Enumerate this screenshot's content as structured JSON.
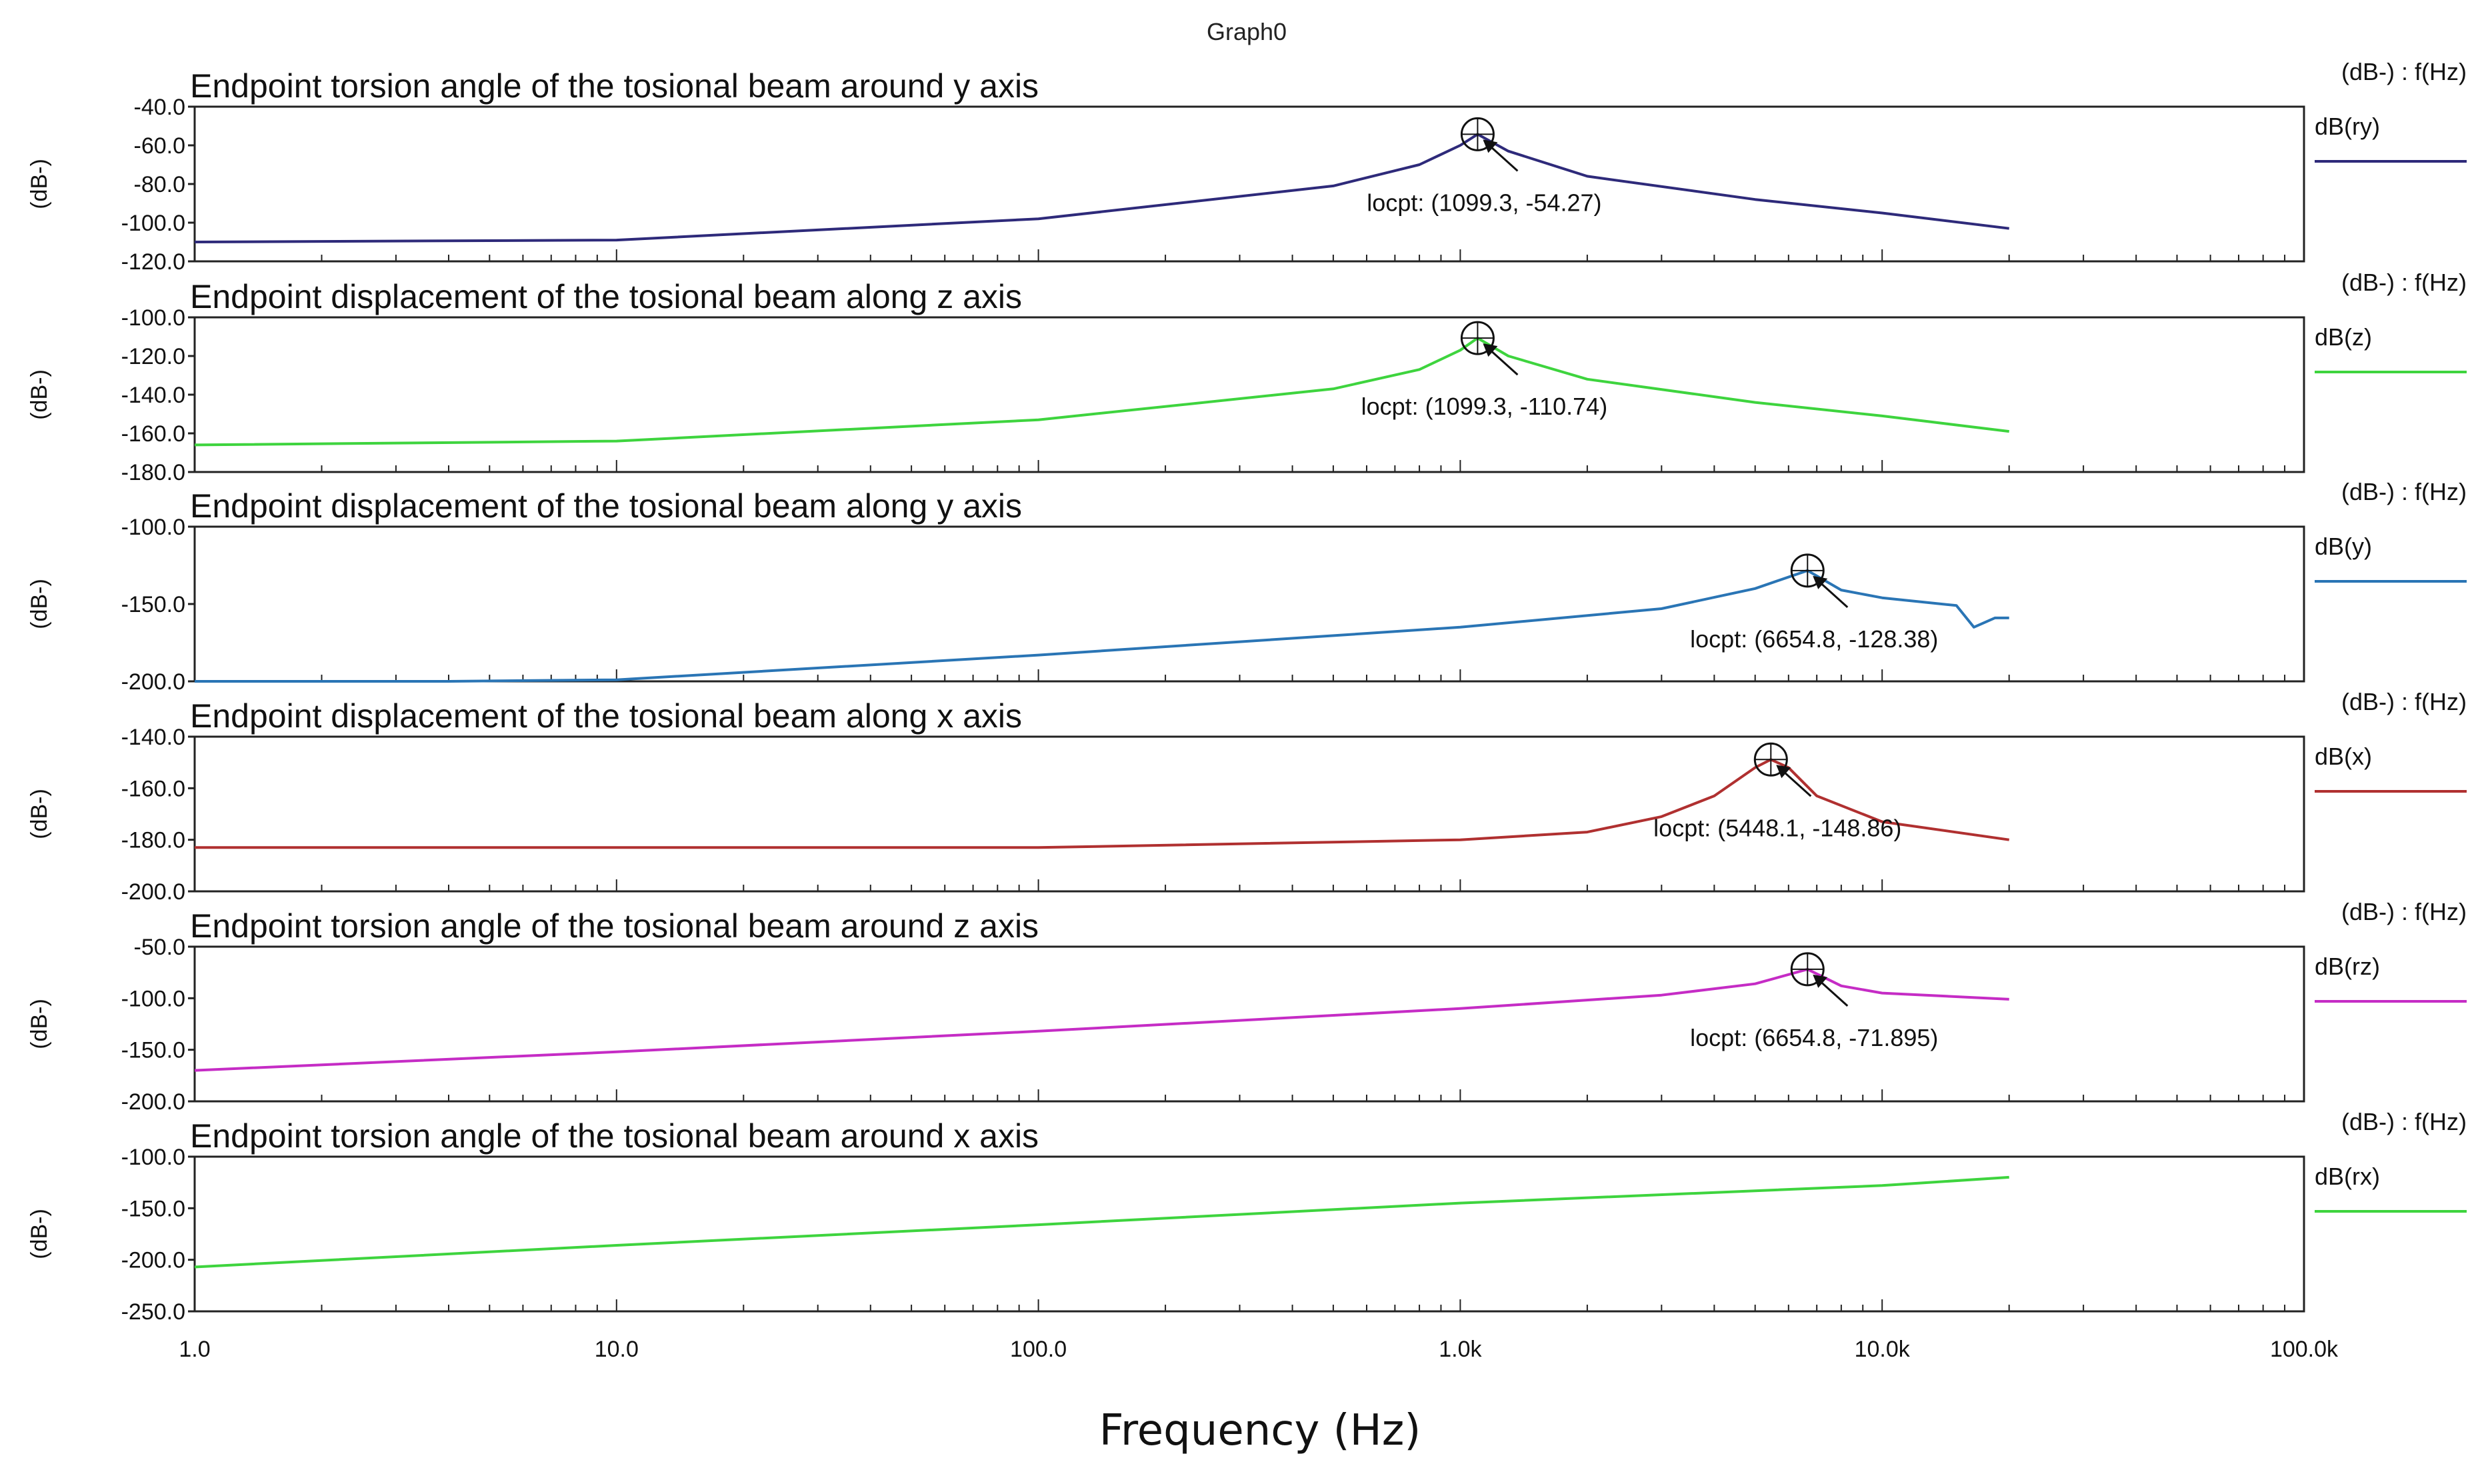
{
  "graph_name": "Graph0",
  "chart_data": {
    "type": "line",
    "xscale": "log",
    "xlim": [
      1,
      100000
    ],
    "xlabel": "Frequency (Hz)",
    "xticks": [
      {
        "value": 1,
        "label": "1.0"
      },
      {
        "value": 10,
        "label": "10.0"
      },
      {
        "value": 100,
        "label": "100.0"
      },
      {
        "value": 1000,
        "label": "1.0k"
      },
      {
        "value": 10000,
        "label": "10.0k"
      },
      {
        "value": 100000,
        "label": "100.0k"
      }
    ],
    "panels": [
      {
        "title": "Endpoint torsion angle of the tosional beam around y axis",
        "ylabel": "(dB-)",
        "ylim": [
          -120,
          -40
        ],
        "yticks": [
          {
            "value": -40,
            "label": "-40.0"
          },
          {
            "value": -60,
            "label": "-60.0"
          },
          {
            "value": -80,
            "label": "-80.0"
          },
          {
            "value": -100,
            "label": "-100.0"
          },
          {
            "value": -120,
            "label": "-120.0"
          }
        ],
        "legend_header": "(dB-) : f(Hz)",
        "legend_label": "dB(ry)",
        "color": "#2e2a7a",
        "points": [
          [
            1,
            -110
          ],
          [
            10,
            -109
          ],
          [
            100,
            -98
          ],
          [
            500,
            -81
          ],
          [
            800,
            -70
          ],
          [
            1000,
            -60
          ],
          [
            1099.3,
            -54.27
          ],
          [
            1300,
            -63
          ],
          [
            2000,
            -76
          ],
          [
            5000,
            -88
          ],
          [
            10000,
            -95
          ],
          [
            20000,
            -103
          ]
        ],
        "marker": {
          "x": 1099.3,
          "y": -54.27,
          "label": "locpt: (1099.3, -54.27)"
        }
      },
      {
        "title": "Endpoint displacement of the tosional beam along z axis",
        "ylabel": "(dB-)",
        "ylim": [
          -180,
          -100
        ],
        "yticks": [
          {
            "value": -100,
            "label": "-100.0"
          },
          {
            "value": -120,
            "label": "-120.0"
          },
          {
            "value": -140,
            "label": "-140.0"
          },
          {
            "value": -160,
            "label": "-160.0"
          },
          {
            "value": -180,
            "label": "-180.0"
          }
        ],
        "legend_header": "(dB-) : f(Hz)",
        "legend_label": "dB(z)",
        "color": "#3ed43e",
        "points": [
          [
            1,
            -166
          ],
          [
            10,
            -164
          ],
          [
            100,
            -153
          ],
          [
            500,
            -137
          ],
          [
            800,
            -127
          ],
          [
            1000,
            -117
          ],
          [
            1099.3,
            -110.74
          ],
          [
            1300,
            -120
          ],
          [
            2000,
            -132
          ],
          [
            5000,
            -144
          ],
          [
            10000,
            -151
          ],
          [
            20000,
            -159
          ]
        ],
        "marker": {
          "x": 1099.3,
          "y": -110.74,
          "label": "locpt: (1099.3, -110.74)"
        }
      },
      {
        "title": "Endpoint displacement of the tosional beam along y axis",
        "ylabel": "(dB-)",
        "ylim": [
          -200,
          -100
        ],
        "yticks": [
          {
            "value": -100,
            "label": "-100.0"
          },
          {
            "value": -150,
            "label": "-150.0"
          },
          {
            "value": -200,
            "label": "-200.0"
          }
        ],
        "legend_header": "(dB-) : f(Hz)",
        "legend_label": "dB(y)",
        "color": "#2a75b5",
        "points": [
          [
            1,
            -200
          ],
          [
            4,
            -200
          ],
          [
            10,
            -199
          ],
          [
            100,
            -183
          ],
          [
            1000,
            -165
          ],
          [
            3000,
            -153
          ],
          [
            5000,
            -140
          ],
          [
            6654.8,
            -128.38
          ],
          [
            8000,
            -141
          ],
          [
            10000,
            -146
          ],
          [
            15000,
            -151
          ],
          [
            16500,
            -165
          ],
          [
            18500,
            -159
          ],
          [
            20000,
            -159
          ]
        ],
        "marker": {
          "x": 6654.8,
          "y": -128.38,
          "label": "locpt: (6654.8, -128.38)"
        }
      },
      {
        "title": "Endpoint displacement of the tosional beam along x axis",
        "ylabel": "(dB-)",
        "ylim": [
          -200,
          -140
        ],
        "yticks": [
          {
            "value": -140,
            "label": "-140.0"
          },
          {
            "value": -160,
            "label": "-160.0"
          },
          {
            "value": -180,
            "label": "-180.0"
          },
          {
            "value": -200,
            "label": "-200.0"
          }
        ],
        "legend_header": "(dB-) : f(Hz)",
        "legend_label": "dB(x)",
        "color": "#b03030",
        "points": [
          [
            1,
            -183
          ],
          [
            100,
            -183
          ],
          [
            1000,
            -180
          ],
          [
            2000,
            -177
          ],
          [
            3000,
            -171
          ],
          [
            4000,
            -163
          ],
          [
            5000,
            -152
          ],
          [
            5448.1,
            -148.86
          ],
          [
            6000,
            -152
          ],
          [
            7000,
            -163
          ],
          [
            10000,
            -173
          ],
          [
            20000,
            -180
          ]
        ],
        "marker": {
          "x": 5448.1,
          "y": -148.86,
          "label": "locpt: (5448.1, -148.86)"
        }
      },
      {
        "title": "Endpoint torsion angle of the tosional beam around z axis",
        "ylabel": "(dB-)",
        "ylim": [
          -200,
          -50
        ],
        "yticks": [
          {
            "value": -50,
            "label": "-50.0"
          },
          {
            "value": -100,
            "label": "-100.0"
          },
          {
            "value": -150,
            "label": "-150.0"
          },
          {
            "value": -200,
            "label": "-200.0"
          }
        ],
        "legend_header": "(dB-) : f(Hz)",
        "legend_label": "dB(rz)",
        "color": "#c52cc5",
        "points": [
          [
            1,
            -170
          ],
          [
            10,
            -152
          ],
          [
            100,
            -132
          ],
          [
            1000,
            -110
          ],
          [
            3000,
            -97
          ],
          [
            5000,
            -86
          ],
          [
            6654.8,
            -71.895
          ],
          [
            8000,
            -88
          ],
          [
            10000,
            -95
          ],
          [
            20000,
            -101
          ]
        ],
        "marker": {
          "x": 6654.8,
          "y": -71.895,
          "label": "locpt: (6654.8, -71.895)"
        }
      },
      {
        "title": "Endpoint torsion angle of the tosional beam around x axis",
        "ylabel": "(dB-)",
        "ylim": [
          -250,
          -100
        ],
        "yticks": [
          {
            "value": -100,
            "label": "-100.0"
          },
          {
            "value": -150,
            "label": "-150.0"
          },
          {
            "value": -200,
            "label": "-200.0"
          },
          {
            "value": -250,
            "label": "-250.0"
          }
        ],
        "legend_header": "(dB-) : f(Hz)",
        "legend_label": "dB(rx)",
        "color": "#3ed43e",
        "points": [
          [
            1,
            -207
          ],
          [
            10,
            -186
          ],
          [
            100,
            -166
          ],
          [
            1000,
            -145
          ],
          [
            10000,
            -128
          ],
          [
            20000,
            -120
          ]
        ],
        "marker": null
      }
    ]
  }
}
